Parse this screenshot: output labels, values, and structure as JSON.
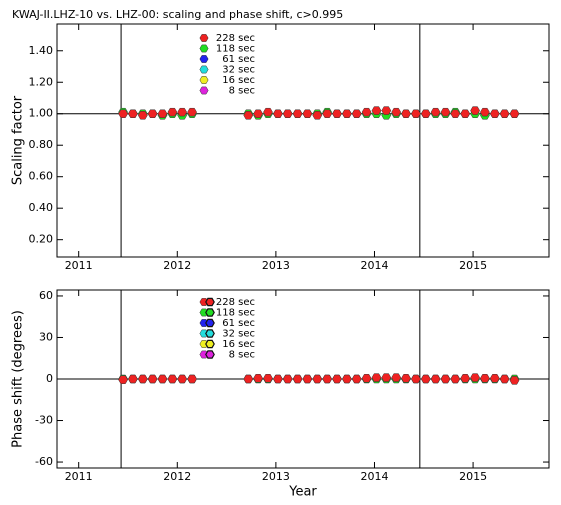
{
  "chart_data": [
    {
      "type": "scatter",
      "title": "KWAJ-II.LHZ-10 vs. LHZ-00: scaling and phase shift, c>0.995",
      "ylabel": "Scaling factor",
      "x": [
        2011.45,
        2011.55,
        2011.65,
        2011.75,
        2011.85,
        2011.95,
        2012.05,
        2012.15,
        2012.72,
        2012.82,
        2012.92,
        2013.02,
        2013.12,
        2013.22,
        2013.32,
        2013.42,
        2013.52,
        2013.62,
        2013.72,
        2013.82,
        2013.92,
        2014.02,
        2014.12,
        2014.22,
        2014.32,
        2014.42,
        2014.52,
        2014.62,
        2014.72,
        2014.82,
        2014.92,
        2015.02,
        2015.12,
        2015.22,
        2015.32,
        2015.42
      ],
      "series": [
        {
          "name": "118 sec",
          "color": "#22dd22",
          "values": [
            1.01,
            1.0,
            1.0,
            1.0,
            0.99,
            1.0,
            0.99,
            1.0,
            1.0,
            0.99,
            1.0,
            1.0,
            1.0,
            1.0,
            1.0,
            1.0,
            1.01,
            1.0,
            1.0,
            1.0,
            1.0,
            1.0,
            0.99,
            1.0,
            1.0,
            1.0,
            1.0,
            1.0,
            1.0,
            1.01,
            1.0,
            1.0,
            0.99,
            1.0,
            1.0,
            1.0
          ]
        },
        {
          "name": "228 sec",
          "color": "#ee2222",
          "values": [
            1.0,
            1.0,
            0.99,
            1.0,
            1.0,
            1.01,
            1.01,
            1.01,
            0.99,
            1.0,
            1.01,
            1.0,
            1.0,
            1.0,
            1.0,
            0.99,
            1.0,
            1.0,
            1.0,
            1.0,
            1.01,
            1.02,
            1.02,
            1.01,
            1.0,
            1.0,
            1.0,
            1.01,
            1.01,
            1.0,
            1.0,
            1.02,
            1.01,
            1.0,
            1.0,
            1.0
          ]
        },
        {
          "name": "61 sec",
          "color": "#2222ee",
          "values": [
            null,
            null,
            null,
            null,
            null,
            null,
            null,
            null,
            null,
            null,
            null,
            null,
            null,
            null,
            null,
            null,
            null,
            null,
            null,
            null,
            null,
            null,
            null,
            null,
            null,
            null,
            null,
            null,
            null,
            null,
            null,
            null,
            null,
            null,
            null,
            null
          ]
        },
        {
          "name": "32 sec",
          "color": "#22dddd",
          "values": [
            null,
            null,
            null,
            null,
            null,
            null,
            null,
            null,
            null,
            null,
            null,
            null,
            null,
            null,
            null,
            null,
            null,
            null,
            null,
            null,
            null,
            null,
            null,
            null,
            null,
            null,
            null,
            null,
            null,
            null,
            null,
            null,
            null,
            null,
            null,
            null
          ]
        },
        {
          "name": "16 sec",
          "color": "#eeee22",
          "values": [
            null,
            null,
            null,
            null,
            null,
            null,
            null,
            null,
            null,
            null,
            null,
            null,
            null,
            null,
            null,
            null,
            null,
            null,
            null,
            null,
            null,
            null,
            null,
            null,
            null,
            null,
            null,
            null,
            null,
            null,
            null,
            null,
            null,
            null,
            null,
            null
          ]
        },
        {
          "name": "8 sec",
          "color": "#dd22dd",
          "values": [
            null,
            null,
            null,
            null,
            null,
            null,
            null,
            null,
            null,
            null,
            null,
            null,
            null,
            null,
            null,
            null,
            null,
            null,
            null,
            null,
            null,
            null,
            null,
            null,
            null,
            null,
            null,
            null,
            null,
            null,
            null,
            null,
            null,
            null,
            null,
            null
          ]
        }
      ],
      "legend_order": [
        1,
        0,
        2,
        3,
        4,
        5
      ],
      "xlim": [
        2010.78,
        2015.77
      ],
      "xticks": [
        2011,
        2012,
        2013,
        2014,
        2015
      ],
      "ylim": [
        0.09,
        1.57
      ],
      "yticks": [
        {
          "value": 0.2,
          "label": "0.20"
        },
        {
          "value": 0.4,
          "label": "0.40"
        },
        {
          "value": 0.6,
          "label": "0.60"
        },
        {
          "value": 0.8,
          "label": "0.80"
        },
        {
          "value": 1.0,
          "label": "1.00"
        },
        {
          "value": 1.2,
          "label": "1.20"
        },
        {
          "value": 1.4,
          "label": "1.40"
        }
      ],
      "vlines": [
        2011.43,
        2014.46
      ],
      "hline": 1.0
    },
    {
      "type": "scatter",
      "ylabel": "Phase shift (degrees)",
      "xlabel": "Year",
      "x": [
        2011.45,
        2011.55,
        2011.65,
        2011.75,
        2011.85,
        2011.95,
        2012.05,
        2012.15,
        2012.72,
        2012.82,
        2012.92,
        2013.02,
        2013.12,
        2013.22,
        2013.32,
        2013.42,
        2013.52,
        2013.62,
        2013.72,
        2013.82,
        2013.92,
        2014.02,
        2014.12,
        2014.22,
        2014.32,
        2014.42,
        2014.52,
        2014.62,
        2014.72,
        2014.82,
        2014.92,
        2015.02,
        2015.12,
        2015.22,
        2015.32,
        2015.42
      ],
      "series": [
        {
          "name": "118 sec",
          "color": "#22dd22",
          "values": [
            0,
            0,
            0,
            0,
            0,
            0,
            0,
            0,
            0,
            0,
            0,
            0,
            0,
            0,
            0,
            0,
            0,
            0,
            0,
            0,
            0,
            0,
            0,
            0,
            0,
            0,
            0,
            0,
            0,
            0,
            0,
            0,
            0,
            0,
            0,
            0
          ]
        },
        {
          "name": "228 sec",
          "color": "#ee2222",
          "values": [
            -0.5,
            0,
            0,
            0,
            0,
            0,
            0,
            0,
            0,
            0.5,
            0.5,
            0,
            0,
            0,
            0,
            0,
            0,
            0,
            0,
            0,
            0.5,
            1,
            1,
            1,
            0.5,
            0,
            0,
            0,
            0,
            0,
            0.5,
            1,
            0.5,
            0.5,
            0,
            -1
          ]
        },
        {
          "name": "61 sec",
          "color": "#2222ee",
          "values": [
            null,
            null,
            null,
            null,
            null,
            null,
            null,
            null,
            null,
            null,
            null,
            null,
            null,
            null,
            null,
            null,
            null,
            null,
            null,
            null,
            null,
            null,
            null,
            null,
            null,
            null,
            null,
            null,
            null,
            null,
            null,
            null,
            null,
            null,
            null,
            null
          ]
        },
        {
          "name": "32 sec",
          "color": "#22dddd",
          "values": [
            null,
            null,
            null,
            null,
            null,
            null,
            null,
            null,
            null,
            null,
            null,
            null,
            null,
            null,
            null,
            null,
            null,
            null,
            null,
            null,
            null,
            null,
            null,
            null,
            null,
            null,
            null,
            null,
            null,
            null,
            null,
            null,
            null,
            null,
            null,
            null
          ]
        },
        {
          "name": "16 sec",
          "color": "#eeee22",
          "values": [
            null,
            null,
            null,
            null,
            null,
            null,
            null,
            null,
            null,
            null,
            null,
            null,
            null,
            null,
            null,
            null,
            null,
            null,
            null,
            null,
            null,
            null,
            null,
            null,
            null,
            null,
            null,
            null,
            null,
            null,
            null,
            null,
            null,
            null,
            null,
            null
          ]
        },
        {
          "name": "8 sec",
          "color": "#dd22dd",
          "values": [
            null,
            null,
            null,
            null,
            null,
            null,
            null,
            null,
            null,
            null,
            null,
            null,
            null,
            null,
            null,
            null,
            null,
            null,
            null,
            null,
            null,
            null,
            null,
            null,
            null,
            null,
            null,
            null,
            null,
            null,
            null,
            null,
            null,
            null,
            null,
            null
          ]
        }
      ],
      "legend_order": [
        1,
        0,
        2,
        3,
        4,
        5
      ],
      "xlim": [
        2010.78,
        2015.77
      ],
      "xticks": [
        2011,
        2012,
        2013,
        2014,
        2015
      ],
      "ylim": [
        -64.3,
        64.3
      ],
      "yticks": [
        -60,
        -30,
        0,
        30,
        60
      ],
      "vlines": [
        2011.43,
        2014.46
      ],
      "hline": 0
    }
  ]
}
